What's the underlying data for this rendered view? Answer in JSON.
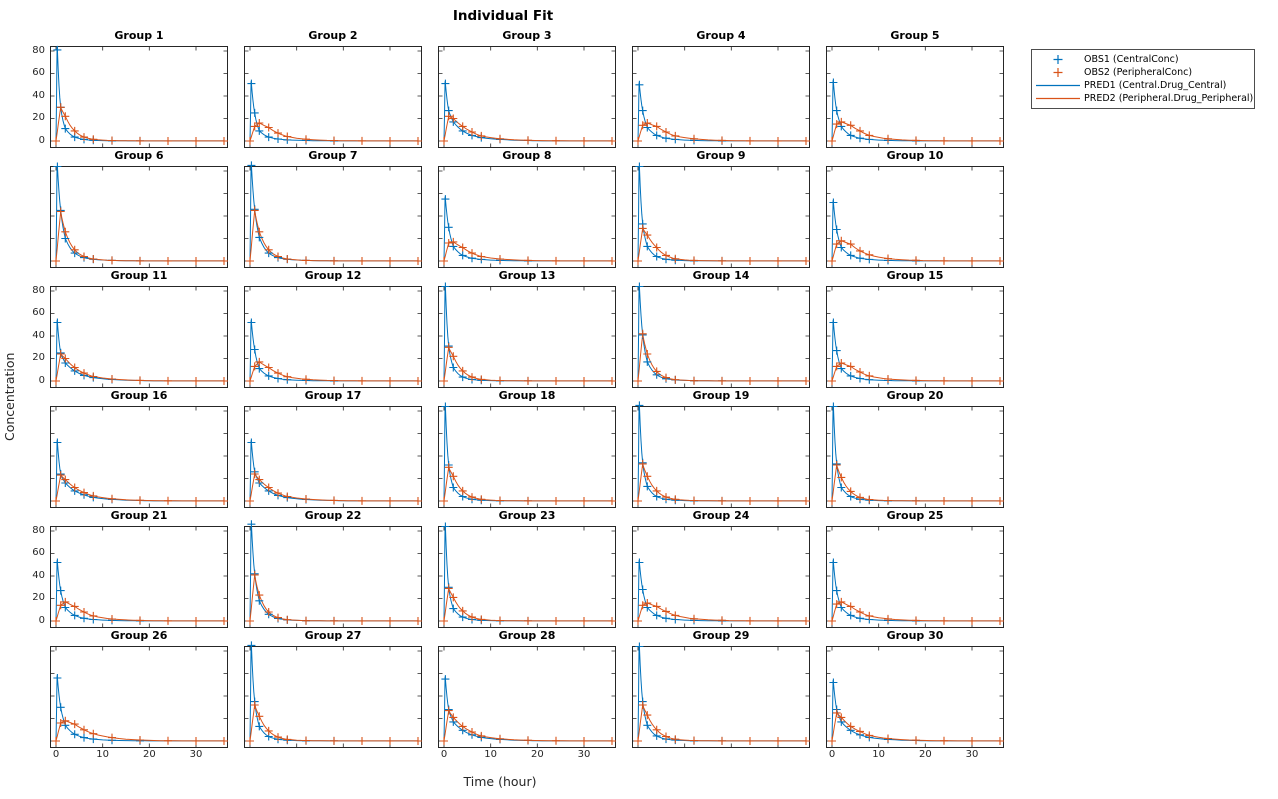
{
  "figure": {
    "title": "Individual Fit",
    "xlabel": "Time (hour)",
    "ylabel": "Concentration"
  },
  "colors": {
    "obs1": "#0072BD",
    "obs2": "#D95319",
    "pred1": "#0072BD",
    "pred2": "#D95319",
    "axis": "#262626",
    "background": "#FFFFFF"
  },
  "legend": {
    "entries": [
      {
        "marker": "plus",
        "color": "#0072BD",
        "label": "OBS1 (CentralConc)"
      },
      {
        "marker": "plus",
        "color": "#D95319",
        "label": "OBS2 (PeripheralConc)"
      },
      {
        "marker": "line",
        "color": "#0072BD",
        "label": "PRED1 (Central.Drug_Central)"
      },
      {
        "marker": "line",
        "color": "#D95319",
        "label": "PRED2 (Peripheral.Drug_Peripheral)"
      }
    ]
  },
  "chart_data": {
    "type": "line",
    "title": "Individual Fit",
    "xlabel": "Time (hour)",
    "ylabel": "Concentration",
    "layout": {
      "rows": 6,
      "cols": 5,
      "xlim": [
        0,
        37
      ],
      "ylim": [
        0,
        88
      ],
      "xticks": [
        0,
        10,
        20,
        30
      ],
      "yticks": [
        0,
        20,
        40,
        60,
        80
      ],
      "ytick_label_rows": [
        0,
        2,
        4
      ],
      "xtick_label_cols": [
        0,
        2,
        4
      ],
      "grid": false,
      "legend_position": "outside-top-right"
    },
    "obs1_times": [
      0.3,
      1,
      2,
      4,
      6,
      8,
      12,
      18
    ],
    "obs2_times": [
      0,
      1,
      2,
      4,
      6,
      8,
      12,
      18,
      24,
      30,
      36
    ],
    "groups": [
      {
        "name": "Group 1",
        "obs1": [
          81,
          30,
          11,
          3.5,
          1.4,
          0.6,
          0.2,
          0.1
        ],
        "obs2": [
          0,
          30,
          22,
          9,
          3.5,
          1.5,
          0.4,
          0.1,
          0,
          0,
          0
        ]
      },
      {
        "name": "Group 2",
        "obs1": [
          51,
          25,
          9,
          3.5,
          1.8,
          1,
          0.4,
          0.1
        ],
        "obs2": [
          0,
          13,
          16,
          12,
          7,
          4,
          1.6,
          0.4,
          0.1,
          0,
          0
        ]
      },
      {
        "name": "Group 3",
        "obs1": [
          51,
          27,
          17,
          9,
          5,
          3,
          1.4,
          0.4
        ],
        "obs2": [
          0,
          22,
          20,
          13,
          8,
          4.5,
          2,
          0.6,
          0.2,
          0,
          0
        ]
      },
      {
        "name": "Group 4",
        "obs1": [
          50,
          27,
          12,
          5,
          2.5,
          1.4,
          0.5,
          0.1
        ],
        "obs2": [
          0,
          14,
          16,
          13,
          8,
          4.5,
          2,
          0.5,
          0.1,
          0,
          0
        ]
      },
      {
        "name": "Group 5",
        "obs1": [
          52,
          27,
          13,
          5,
          2.5,
          1.4,
          0.5,
          0.1
        ],
        "obs2": [
          0,
          15,
          17,
          14,
          9,
          5,
          2,
          0.5,
          0.1,
          0,
          0
        ]
      },
      {
        "name": "Group 6",
        "obs1": [
          84,
          45,
          20,
          7,
          3,
          1.5,
          0.5,
          0.1
        ],
        "obs2": [
          0,
          44,
          26,
          10,
          4,
          1.8,
          0.5,
          0.1,
          0,
          0,
          0
        ]
      },
      {
        "name": "Group 7",
        "obs1": [
          85,
          46,
          21,
          7,
          3,
          1.5,
          0.5,
          0.1
        ],
        "obs2": [
          0,
          45,
          26,
          10,
          4,
          1.8,
          0.5,
          0.1,
          0,
          0,
          0
        ]
      },
      {
        "name": "Group 8",
        "obs1": [
          55,
          30,
          13,
          5,
          2.5,
          1.4,
          0.5,
          0.1
        ],
        "obs2": [
          0,
          16,
          17,
          12,
          7,
          4,
          1.8,
          0.5,
          0.1,
          0,
          0
        ]
      },
      {
        "name": "Group 9",
        "obs1": [
          84,
          33,
          13,
          4,
          1.5,
          0.7,
          0.2,
          0.1
        ],
        "obs2": [
          0,
          29,
          23,
          12,
          5,
          2,
          0.5,
          0.1,
          0,
          0,
          0
        ]
      },
      {
        "name": "Group 10",
        "obs1": [
          52,
          28,
          12,
          5,
          2.5,
          1.4,
          0.5,
          0.1
        ],
        "obs2": [
          0,
          15,
          18,
          15,
          9,
          5.5,
          2.2,
          0.6,
          0.1,
          0,
          0
        ]
      },
      {
        "name": "Group 11",
        "obs1": [
          52,
          25,
          16,
          9,
          5,
          3,
          1.3,
          0.4
        ],
        "obs2": [
          0,
          24,
          20,
          12,
          7,
          4,
          1.8,
          0.5,
          0.1,
          0,
          0
        ]
      },
      {
        "name": "Group 12",
        "obs1": [
          52,
          28,
          11,
          4.5,
          2.2,
          1.2,
          0.4,
          0.1
        ],
        "obs2": [
          0,
          13,
          17,
          12,
          7,
          3.8,
          1.5,
          0.4,
          0.1,
          0,
          0
        ]
      },
      {
        "name": "Group 13",
        "obs1": [
          84,
          31,
          12,
          3.5,
          1.3,
          0.6,
          0.2,
          0.1
        ],
        "obs2": [
          0,
          30,
          22,
          9,
          3.5,
          1.4,
          0.4,
          0.1,
          0,
          0,
          0
        ]
      },
      {
        "name": "Group 14",
        "obs1": [
          84,
          41,
          17,
          5.5,
          2,
          1,
          0.3,
          0.1
        ],
        "obs2": [
          0,
          42,
          24,
          8.5,
          3,
          1.2,
          0.3,
          0.1,
          0,
          0,
          0
        ]
      },
      {
        "name": "Group 15",
        "obs1": [
          52,
          27,
          11,
          4.5,
          2.2,
          1.2,
          0.4,
          0.1
        ],
        "obs2": [
          0,
          13,
          16,
          13,
          8,
          4.5,
          1.8,
          0.5,
          0.1,
          0,
          0
        ]
      },
      {
        "name": "Group 16",
        "obs1": [
          52,
          24,
          16,
          9,
          5.5,
          3.2,
          1.4,
          0.4
        ],
        "obs2": [
          0,
          23,
          19,
          12,
          7.5,
          4.5,
          2,
          0.6,
          0.2,
          0,
          0
        ]
      },
      {
        "name": "Group 17",
        "obs1": [
          52,
          26,
          16,
          9,
          5,
          3,
          1.3,
          0.4
        ],
        "obs2": [
          0,
          24,
          19,
          12,
          7,
          4,
          1.8,
          0.5,
          0.1,
          0,
          0
        ]
      },
      {
        "name": "Group 18",
        "obs1": [
          84,
          32,
          12,
          4,
          1.5,
          0.7,
          0.2,
          0.1
        ],
        "obs2": [
          0,
          30,
          22,
          9,
          3.5,
          1.5,
          0.4,
          0.1,
          0,
          0,
          0
        ]
      },
      {
        "name": "Group 19",
        "obs1": [
          85,
          34,
          13,
          4,
          1.5,
          0.7,
          0.2,
          0.1
        ],
        "obs2": [
          0,
          33,
          22,
          9,
          3.5,
          1.5,
          0.4,
          0.1,
          0,
          0,
          0
        ]
      },
      {
        "name": "Group 20",
        "obs1": [
          84,
          33,
          12,
          4,
          1.5,
          0.7,
          0.2,
          0.1
        ],
        "obs2": [
          0,
          32,
          21,
          8.5,
          3.2,
          1.3,
          0.4,
          0.1,
          0,
          0,
          0
        ]
      },
      {
        "name": "Group 21",
        "obs1": [
          52,
          27,
          12,
          5,
          2.4,
          1.3,
          0.5,
          0.1
        ],
        "obs2": [
          0,
          14,
          17,
          13,
          8,
          4.5,
          1.8,
          0.5,
          0.1,
          0,
          0
        ]
      },
      {
        "name": "Group 22",
        "obs1": [
          86,
          42,
          18,
          6,
          2.2,
          1,
          0.3,
          0.1
        ],
        "obs2": [
          0,
          41,
          23,
          8,
          3,
          1.2,
          0.3,
          0.1,
          0,
          0,
          0
        ]
      },
      {
        "name": "Group 23",
        "obs1": [
          84,
          30,
          11,
          3.5,
          1.3,
          0.6,
          0.2,
          0.1
        ],
        "obs2": [
          0,
          29,
          21,
          9,
          3.5,
          1.4,
          0.4,
          0.1,
          0,
          0,
          0
        ]
      },
      {
        "name": "Group 24",
        "obs1": [
          52,
          28,
          12,
          5,
          2.4,
          1.3,
          0.5,
          0.1
        ],
        "obs2": [
          0,
          14,
          16,
          13,
          8.5,
          5,
          2,
          0.6,
          0.1,
          0,
          0
        ]
      },
      {
        "name": "Group 25",
        "obs1": [
          52,
          27,
          12,
          5,
          2.4,
          1.3,
          0.5,
          0.1
        ],
        "obs2": [
          0,
          15,
          17,
          13,
          8,
          4.5,
          1.9,
          0.5,
          0.1,
          0,
          0
        ]
      },
      {
        "name": "Group 26",
        "obs1": [
          56,
          30,
          14,
          6,
          3,
          1.7,
          0.6,
          0.2
        ],
        "obs2": [
          0,
          16,
          18,
          15,
          10,
          6.5,
          3,
          0.9,
          0.2,
          0,
          0
        ]
      },
      {
        "name": "Group 27",
        "obs1": [
          85,
          35,
          13,
          4,
          1.5,
          0.7,
          0.2,
          0.1
        ],
        "obs2": [
          0,
          32,
          22,
          9,
          3.5,
          1.4,
          0.4,
          0.1,
          0,
          0,
          0
        ]
      },
      {
        "name": "Group 28",
        "obs1": [
          55,
          28,
          17,
          9.5,
          5.5,
          3.2,
          1.4,
          0.4
        ],
        "obs2": [
          0,
          27,
          21,
          13,
          8,
          4.5,
          2,
          0.6,
          0.2,
          0,
          0
        ]
      },
      {
        "name": "Group 29",
        "obs1": [
          84,
          35,
          14,
          4.5,
          1.7,
          0.8,
          0.2,
          0.1
        ],
        "obs2": [
          0,
          32,
          23,
          10,
          4,
          1.6,
          0.4,
          0.1,
          0,
          0,
          0
        ]
      },
      {
        "name": "Group 30",
        "obs1": [
          52,
          28,
          17,
          9.5,
          5.5,
          3.2,
          1.4,
          0.4
        ],
        "obs2": [
          0,
          25,
          21,
          13,
          8.5,
          5,
          2.2,
          0.7,
          0.2,
          0,
          0
        ]
      }
    ]
  }
}
